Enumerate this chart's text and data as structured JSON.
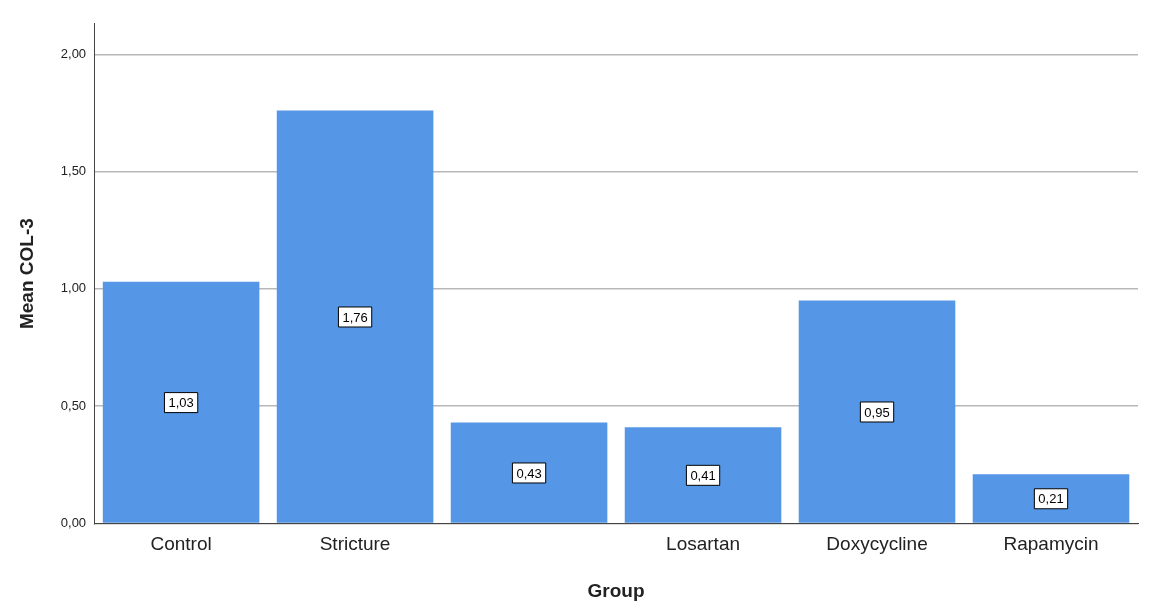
{
  "chart_data": {
    "type": "bar",
    "xlabel": "Group",
    "ylabel": "Mean COL-3",
    "categories": [
      "Control",
      "Stricture",
      null,
      "Losartan",
      "Doxycycline",
      "Rapamycin"
    ],
    "values": [
      1.03,
      1.76,
      0.43,
      0.41,
      0.95,
      0.21
    ],
    "value_labels": [
      "1,03",
      "1,76",
      "0,43",
      "0,41",
      "0,95",
      "0,21"
    ],
    "color": "#5596e6",
    "ylim": [
      0,
      2.13
    ],
    "yticks": [
      {
        "value": 0,
        "label": "0,00"
      },
      {
        "value": 0.5,
        "label": "0,50"
      },
      {
        "value": 1,
        "label": "1,00"
      },
      {
        "value": 1.5,
        "label": "1,50"
      },
      {
        "value": 2,
        "label": "2,00"
      }
    ],
    "grid": "y",
    "legend": false
  }
}
